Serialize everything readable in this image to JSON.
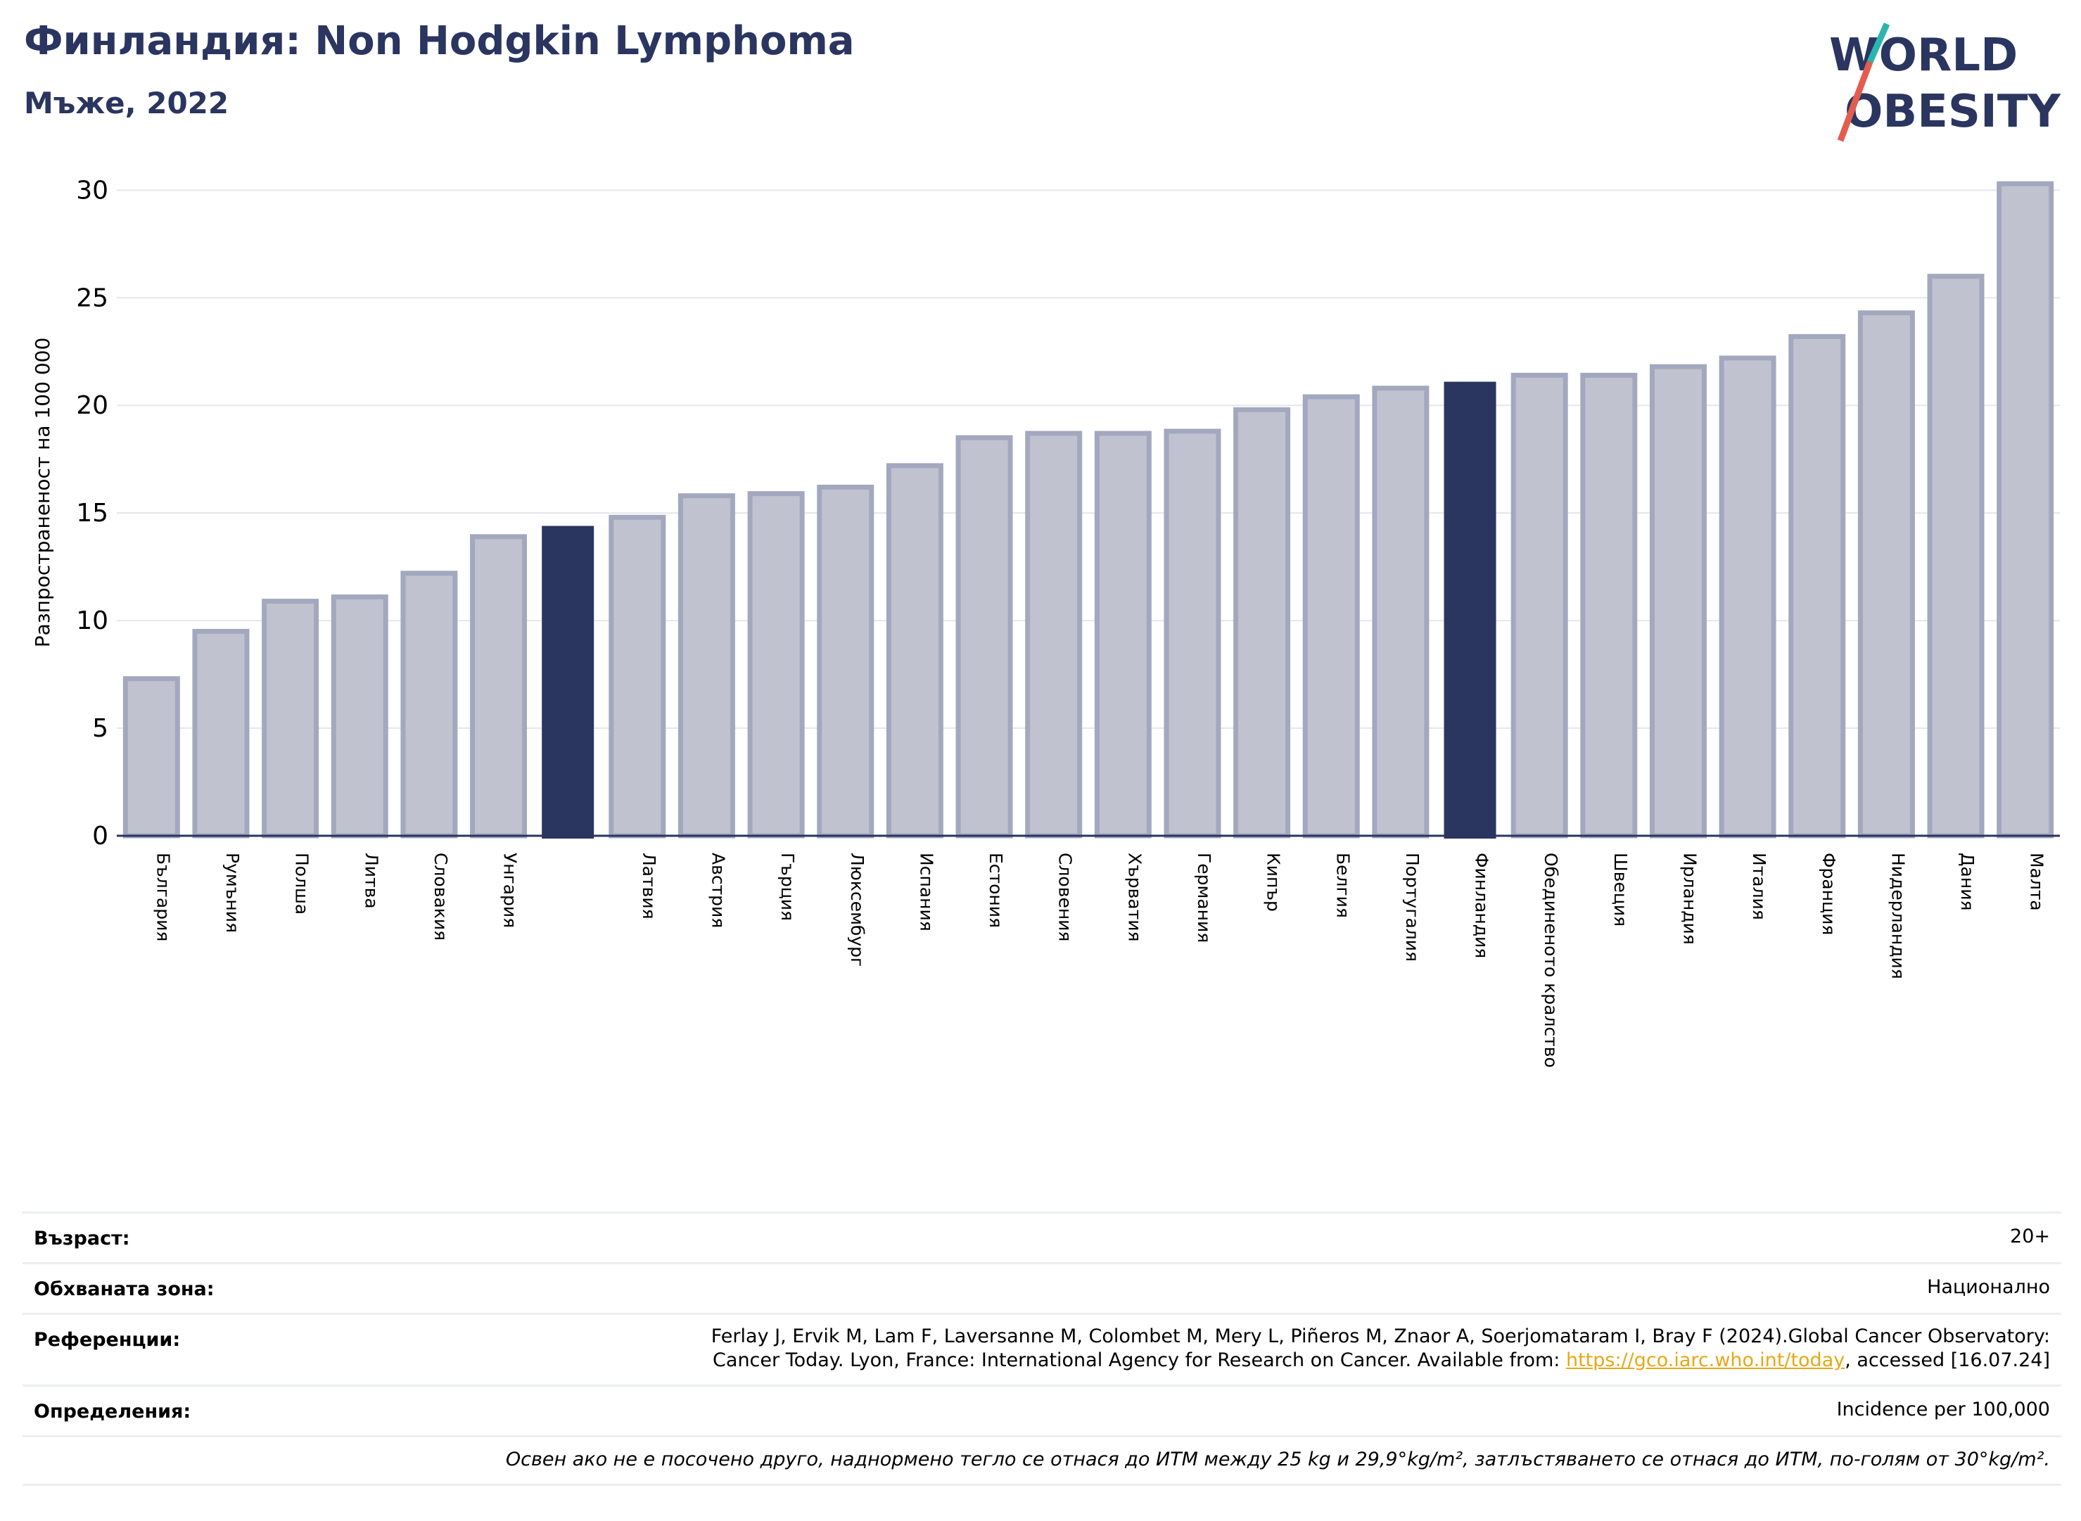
{
  "header": {
    "title": "Финландия: Non Hodgkin Lymphoma",
    "subtitle": "Мъже, 2022"
  },
  "logo": {
    "line1": "WORLD",
    "line2": "OBESITY"
  },
  "colors": {
    "highlight": "#2a3560",
    "bar_fill": "#c0c3cf",
    "bar_stroke": "#a3a8bf",
    "accent": "#e6a817"
  },
  "chart_data": {
    "type": "bar",
    "ylabel": "Разпространеност  на 100 000",
    "ylim": [
      0,
      30.6
    ],
    "yticks": [
      0,
      5,
      10,
      15,
      20,
      25,
      30
    ],
    "grid": true,
    "categories": [
      "България",
      "Румъния",
      "Полша",
      "Литва",
      "Словакия",
      "Унгария",
      "",
      "Латвия",
      "Австрия",
      "Гърция",
      "Люксембург",
      "Испания",
      "Естония",
      "Словения",
      "Хърватия",
      "Германия",
      "Кипър",
      "Белгия",
      "Португалия",
      "Финландия",
      "Обединеното кралство",
      "Швеция",
      "Ирландия",
      "Италия",
      "Франция",
      "Нидерландия",
      "Дания",
      "Малта"
    ],
    "values": [
      7.3,
      9.5,
      10.9,
      11.1,
      12.2,
      13.9,
      14.4,
      14.8,
      15.8,
      15.9,
      16.2,
      17.2,
      18.5,
      18.7,
      18.7,
      18.8,
      19.8,
      20.4,
      20.8,
      21.1,
      21.4,
      21.4,
      21.8,
      22.2,
      23.2,
      24.3,
      26.0,
      30.3
    ],
    "highlighted": [
      6,
      19
    ]
  },
  "info": {
    "age_label": "Възраст:",
    "age_value": "20+",
    "area_label": "Обхваната зона:",
    "area_value": "Национално",
    "refs_label": "Референции:",
    "refs_line1": "Ferlay J, Ervik M, Lam F, Laversanne M, Colombet M, Mery L, Piñeros M, Znaor A, Soerjomataram I, Bray F (2024).Global Cancer Observatory:",
    "refs_line2_pre": "Cancer Today. Lyon, France: International Agency for Research on Cancer. Available from: ",
    "refs_link": "https://gco.iarc.who.int/today",
    "refs_line2_post": ", accessed [16.07.24]",
    "defs_label": "Определения:",
    "defs_value": "Incidence per 100,000",
    "note": "Освен ако не е посочено друго, наднормено тегло се отнася до ИТМ между 25 kg и 29,9°kg/m², затлъстяването се отнася до ИТМ, по-голям от 30°kg/m²."
  }
}
